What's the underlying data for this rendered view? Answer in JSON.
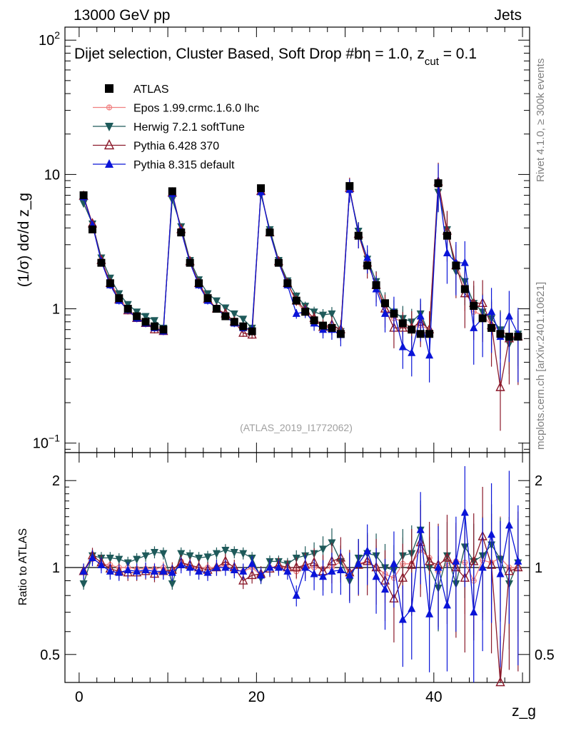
{
  "header": {
    "left": "13000 GeV pp",
    "right": "Jets",
    "title": "Dijet selection, Cluster Based, Soft Drop #b",
    "title_eq": "η = 1.0, z",
    "title_sub": "cut",
    "title_tail": " = 0.1"
  },
  "side_labels": {
    "rivet": "Rivet 4.1.0, ≥ 300k events",
    "mcplots": "mcplots.cern.ch [arXiv:2401.10621]"
  },
  "watermark": "(ATLAS_2019_I1772062)",
  "colors": {
    "atlas": "#000000",
    "epos": "#f08080",
    "herwig": "#1e5a5a",
    "pythia6": "#8b1a2b",
    "pythia8": "#0a14d8"
  },
  "chart_data": [
    {
      "type": "scatter",
      "panel": "main",
      "title": "Dijet selection, Cluster Based, Soft Drop η = 1.0, z_cut = 0.1",
      "xlabel": "z_g",
      "ylabel": "(1/σ) dσ/d z_g",
      "yscale": "log",
      "xlim": [
        -1.6,
        50.8
      ],
      "ylim": [
        0.085,
        125
      ],
      "yticks": [
        {
          "value": 0.1,
          "label": "10",
          "sup": "−1"
        },
        {
          "value": 1,
          "label": "1",
          "sup": ""
        },
        {
          "value": 10,
          "label": "10",
          "sup": ""
        },
        {
          "value": 100,
          "label": "10",
          "sup": "2"
        }
      ],
      "xticks": [
        {
          "value": 0,
          "label": "0"
        },
        {
          "value": 20,
          "label": "20"
        },
        {
          "value": 40,
          "label": "40"
        }
      ],
      "x": [
        0.5,
        1.5,
        2.5,
        3.5,
        4.5,
        5.5,
        6.5,
        7.5,
        8.5,
        9.5,
        10.5,
        11.5,
        12.5,
        13.5,
        14.5,
        15.5,
        16.5,
        17.5,
        18.5,
        19.5,
        20.5,
        21.5,
        22.5,
        23.5,
        24.5,
        25.5,
        26.5,
        27.5,
        28.5,
        29.5,
        30.5,
        31.5,
        32.5,
        33.5,
        34.5,
        35.5,
        36.5,
        37.5,
        38.5,
        39.5,
        40.5,
        41.5,
        42.5,
        43.5,
        44.5,
        45.5,
        46.5,
        47.5,
        48.5,
        49.5
      ],
      "series": [
        {
          "name": "ATLAS",
          "key": "atlas",
          "marker": "square",
          "values": [
            7.0,
            3.9,
            2.2,
            1.55,
            1.2,
            1.0,
            0.88,
            0.8,
            0.74,
            0.7,
            7.5,
            3.7,
            2.2,
            1.55,
            1.2,
            1.0,
            0.88,
            0.8,
            0.74,
            0.68,
            7.9,
            3.7,
            2.2,
            1.55,
            1.15,
            0.95,
            0.82,
            0.75,
            0.72,
            0.65,
            8.2,
            3.5,
            2.1,
            1.5,
            1.1,
            0.92,
            0.78,
            0.7,
            0.65,
            0.65,
            8.6,
            3.5,
            2.1,
            1.4,
            1.05,
            0.85,
            0.72,
            0.65,
            0.62,
            0.62
          ]
        },
        {
          "name": "Epos 1.99.crmc.1.6.0 lhc",
          "key": "epos",
          "marker": "cross",
          "values": [
            6.6,
            4.2,
            2.3,
            1.6,
            1.2,
            1.0,
            0.87,
            0.79,
            0.73,
            0.7,
            7.2,
            3.9,
            2.2,
            1.55,
            1.2,
            1.0,
            0.9,
            0.78,
            0.72,
            0.68,
            7.4,
            3.7,
            2.2,
            1.55,
            1.12,
            0.95,
            0.82,
            0.74,
            0.72,
            0.68,
            7.8,
            3.6,
            2.2,
            1.5,
            1.05,
            0.85,
            0.8,
            0.72,
            0.75,
            0.7,
            8.3,
            3.6,
            2.2,
            1.45,
            0.95,
            0.9,
            0.75,
            0.7,
            0.62,
            0.62
          ]
        },
        {
          "name": "Herwig 7.2.1 softTune",
          "key": "herwig",
          "marker": "tri-down",
          "values": [
            6.1,
            4.3,
            2.4,
            1.7,
            1.3,
            1.08,
            0.95,
            0.88,
            0.82,
            0.72,
            6.5,
            4.1,
            2.3,
            1.65,
            1.3,
            1.15,
            1.02,
            0.92,
            0.84,
            0.72,
            7.1,
            3.9,
            2.3,
            1.62,
            1.25,
            1.05,
            0.95,
            0.9,
            0.92,
            0.68,
            7.6,
            3.8,
            2.35,
            1.6,
            1.1,
            0.95,
            0.85,
            0.8,
            0.92,
            0.65,
            7.4,
            3.9,
            1.9,
            1.6,
            1.1,
            0.95,
            0.85,
            0.7,
            0.55,
            0.65
          ]
        },
        {
          "name": "Pythia 6.428 370",
          "key": "pythia6",
          "marker": "tri-open",
          "values": [
            6.9,
            4.3,
            2.3,
            1.55,
            1.17,
            0.97,
            0.85,
            0.78,
            0.7,
            0.68,
            7.3,
            3.9,
            2.25,
            1.55,
            1.18,
            1.0,
            0.92,
            0.8,
            0.66,
            0.64,
            7.5,
            3.7,
            2.25,
            1.55,
            1.15,
            0.98,
            0.85,
            0.73,
            0.76,
            0.7,
            7.9,
            3.6,
            2.2,
            1.5,
            1.0,
            0.72,
            0.72,
            0.72,
            0.8,
            0.7,
            8.8,
            3.8,
            2.1,
            1.3,
            1.1,
            1.1,
            0.75,
            0.26,
            0.6,
            0.62
          ]
        },
        {
          "name": "Pythia 8.315 default",
          "key": "pythia8",
          "marker": "tri-up",
          "values": [
            6.8,
            4.2,
            2.25,
            1.5,
            1.15,
            0.98,
            0.85,
            0.78,
            0.72,
            0.68,
            7.2,
            3.8,
            2.2,
            1.5,
            1.15,
            1.0,
            0.88,
            0.78,
            0.72,
            0.7,
            7.4,
            3.7,
            2.2,
            1.5,
            0.92,
            0.95,
            0.78,
            0.7,
            0.7,
            0.64,
            7.7,
            3.6,
            2.4,
            1.4,
            0.92,
            0.95,
            0.52,
            0.47,
            0.88,
            0.45,
            8.6,
            2.6,
            2.2,
            2.2,
            0.72,
            0.85,
            0.95,
            0.62,
            0.88,
            0.65
          ]
        }
      ]
    },
    {
      "type": "scatter",
      "panel": "ratio",
      "ylabel": "Ratio to ATLAS",
      "yscale": "log",
      "ylim": [
        0.4,
        2.5
      ],
      "yticks": [
        {
          "value": 0.5,
          "label": "0.5"
        },
        {
          "value": 1,
          "label": "1"
        },
        {
          "value": 2,
          "label": "2"
        }
      ],
      "series": [
        {
          "key": "epos",
          "values": [
            0.97,
            1.07,
            1.03,
            1.02,
            1.0,
            1.0,
            0.99,
            0.99,
            0.99,
            1.0,
            0.96,
            1.05,
            1.0,
            1.0,
            1.0,
            1.0,
            1.02,
            0.98,
            0.97,
            1.0,
            0.94,
            1.0,
            1.0,
            1.0,
            0.97,
            1.0,
            1.0,
            0.99,
            1.0,
            1.05,
            0.95,
            1.03,
            1.05,
            1.0,
            0.95,
            0.92,
            1.03,
            1.03,
            1.15,
            1.08,
            0.97,
            1.03,
            1.05,
            1.04,
            0.9,
            1.06,
            1.04,
            1.08,
            1.0,
            1.0
          ]
        },
        {
          "key": "herwig",
          "values": [
            0.88,
            1.1,
            1.08,
            1.08,
            1.07,
            1.04,
            1.07,
            1.1,
            1.13,
            1.12,
            0.88,
            1.12,
            1.1,
            1.08,
            1.09,
            1.12,
            1.15,
            1.13,
            1.12,
            1.08,
            0.92,
            1.05,
            1.05,
            1.03,
            1.08,
            1.1,
            1.12,
            1.16,
            1.22,
            1.05,
            0.9,
            1.08,
            1.12,
            1.1,
            1.0,
            0.98,
            1.1,
            1.12,
            1.35,
            1.0,
            0.85,
            1.1,
            0.88,
            1.18,
            1.05,
            1.1,
            1.2,
            1.07,
            0.88,
            1.04
          ]
        },
        {
          "key": "pythia6",
          "values": [
            0.97,
            1.1,
            1.04,
            0.99,
            0.97,
            0.96,
            0.96,
            0.97,
            0.95,
            0.97,
            0.98,
            1.04,
            1.02,
            1.0,
            0.98,
            1.0,
            1.05,
            1.0,
            0.9,
            0.94,
            0.95,
            0.99,
            1.02,
            1.0,
            1.0,
            1.02,
            1.04,
            0.97,
            1.05,
            1.08,
            0.96,
            1.02,
            1.05,
            1.0,
            0.9,
            0.78,
            0.92,
            1.02,
            1.22,
            1.05,
            1.02,
            1.08,
            1.0,
            0.92,
            1.05,
            1.28,
            1.02,
            0.38,
            0.97,
            1.0
          ]
        },
        {
          "key": "pythia8",
          "values": [
            0.97,
            1.08,
            1.02,
            0.97,
            0.96,
            0.98,
            0.97,
            0.98,
            0.97,
            0.97,
            0.96,
            1.02,
            1.0,
            0.97,
            0.96,
            1.0,
            1.0,
            0.98,
            0.97,
            1.03,
            0.94,
            1.0,
            1.0,
            0.97,
            0.8,
            1.0,
            0.95,
            0.93,
            0.97,
            0.98,
            0.94,
            1.03,
            1.14,
            0.93,
            0.84,
            1.03,
            0.66,
            0.72,
            1.35,
            0.69,
            1.0,
            0.74,
            1.05,
            1.55,
            0.7,
            1.0,
            1.3,
            0.95,
            1.4,
            1.05
          ]
        }
      ]
    }
  ],
  "legend": [
    {
      "key": "atlas",
      "label": "ATLAS"
    },
    {
      "key": "epos",
      "label": "Epos 1.99.crmc.1.6.0 lhc"
    },
    {
      "key": "herwig",
      "label": "Herwig 7.2.1 softTune"
    },
    {
      "key": "pythia6",
      "label": "Pythia 6.428 370"
    },
    {
      "key": "pythia8",
      "label": "Pythia 8.315 default"
    }
  ]
}
